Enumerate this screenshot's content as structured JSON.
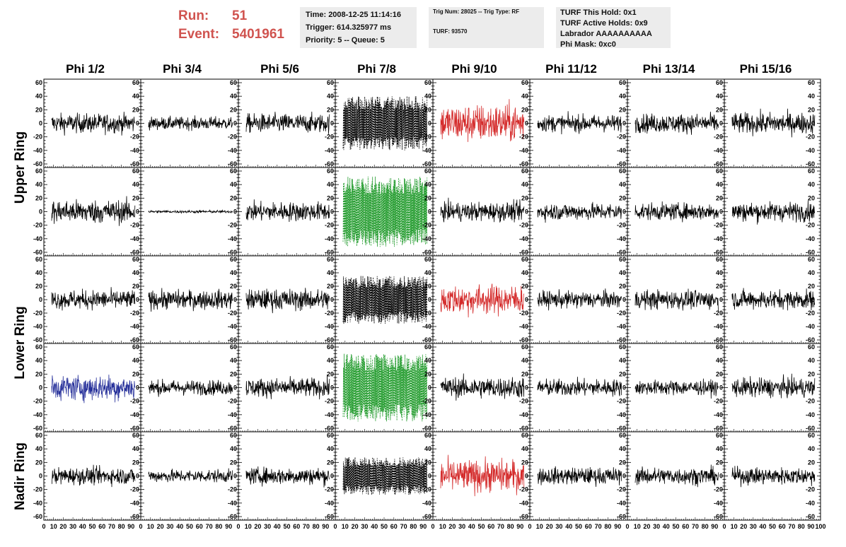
{
  "header": {
    "run_label": "Run:",
    "run_value": "51",
    "event_label": "Event:",
    "event_value": "5401961",
    "time": "Time: 2008-12-25 11:14:16",
    "trigger": "Trigger: 614.325977 ms",
    "priority": "Priority: 5 -- Queue: 5",
    "trig_num": "Trig Num: 28025 -- Trig Type: RF",
    "turf": "TURF: 93570",
    "turf_this_hold": "TURF This Hold: 0x1",
    "turf_active_holds": "TURF Active Holds: 0x9",
    "labrador": "Labrador AAAAAAAAAA",
    "phi_mask": "Phi Mask: 0xc0"
  },
  "columns": [
    "Phi 1/2",
    "Phi 3/4",
    "Phi 5/6",
    "Phi 7/8",
    "Phi 9/10",
    "Phi 11/12",
    "Phi 13/14",
    "Phi 15/16"
  ],
  "row_labels": [
    "Upper Ring",
    "Lower Ring",
    "Nadir Ring"
  ],
  "colors": {
    "black": "#000000",
    "red": "#d42a2a",
    "green": "#1f9a2a",
    "blue": "#26309a",
    "accent": "#d0534f"
  },
  "chart_data": {
    "type": "line",
    "title": "",
    "xlabel": "",
    "ylabel": "",
    "xlim": [
      0,
      100
    ],
    "ylim": [
      -60,
      60
    ],
    "y_ticks": [
      "60",
      "40",
      "20",
      "0",
      "-20",
      "-40",
      "-60"
    ],
    "x_ticks": [
      "0",
      "10",
      "20",
      "30",
      "40",
      "50",
      "60",
      "70",
      "80",
      "90",
      "100"
    ],
    "grid": false,
    "rows": 5,
    "cols": 8,
    "panel_styles": [
      [
        "black",
        "black",
        "black",
        "black-dashed",
        "red",
        "black",
        "black",
        "black"
      ],
      [
        "black",
        "flat",
        "black",
        "green-dashed",
        "black",
        "black",
        "black",
        "black"
      ],
      [
        "black",
        "black",
        "black",
        "black-dashed",
        "red",
        "black",
        "black",
        "black"
      ],
      [
        "blue",
        "black",
        "black",
        "green-dashed",
        "black",
        "black",
        "black",
        "black"
      ],
      [
        "black",
        "black",
        "black",
        "black-dashed",
        "red",
        "black",
        "black",
        "black"
      ]
    ],
    "panel_amplitudes": [
      [
        18,
        12,
        18,
        40,
        36,
        16,
        18,
        20
      ],
      [
        22,
        3,
        18,
        52,
        18,
        16,
        16,
        18
      ],
      [
        18,
        18,
        20,
        36,
        28,
        16,
        18,
        18
      ],
      [
        24,
        14,
        18,
        50,
        20,
        16,
        14,
        18
      ],
      [
        16,
        12,
        16,
        28,
        30,
        16,
        16,
        16
      ]
    ],
    "samples_per_trace": 260
  }
}
